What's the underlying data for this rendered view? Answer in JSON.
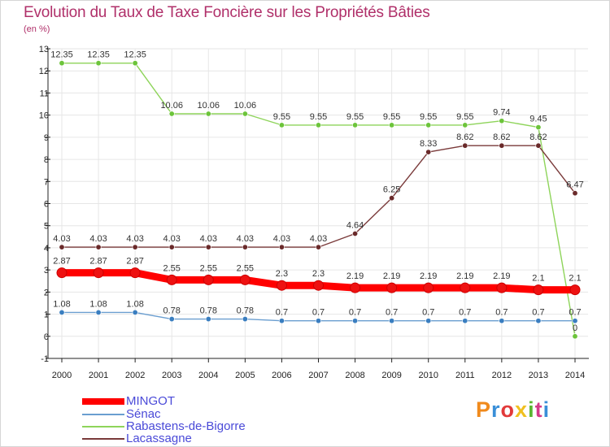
{
  "title": "Evolution du Taux de Taxe Foncière sur les Propriétés Bâties",
  "unit_label": "(en %)",
  "logo_text": "Proxiti",
  "logo_colors": [
    "#f08a1c",
    "#3a8fd8",
    "#e23a3a",
    "#f0c020",
    "#5ab532",
    "#d43a8a",
    "#3a8fd8"
  ],
  "chart_data": {
    "type": "line",
    "title": "Evolution du Taux de Taxe Foncière sur les Propriétés Bâties",
    "ylabel": "(en %)",
    "xlabel": "",
    "ylim": [
      -1,
      13
    ],
    "y_ticks": [
      "-1",
      "0",
      "1",
      "2",
      "3",
      "4",
      "5",
      "6",
      "7",
      "8",
      "9",
      "10",
      "11",
      "12",
      "13"
    ],
    "y_tick_values": [
      -1,
      0,
      1,
      2,
      3,
      4,
      5,
      6,
      7,
      8,
      9,
      10,
      11,
      12,
      13
    ],
    "grid": true,
    "legend_position": "bottom-left",
    "categories": [
      "2000",
      "2001",
      "2002",
      "2003",
      "2004",
      "2005",
      "2006",
      "2007",
      "2008",
      "2009",
      "2010",
      "2011",
      "2012",
      "2013",
      "2014"
    ],
    "series": [
      {
        "name": "Rabastens-de-Bigorre",
        "color": "#8ed45a",
        "marker": "#6cc43a",
        "values": [
          12.35,
          12.35,
          12.35,
          10.06,
          10.06,
          10.06,
          9.55,
          9.55,
          9.55,
          9.55,
          9.55,
          9.55,
          9.74,
          9.45,
          0
        ],
        "labels": [
          "12.35",
          "12.35",
          "12.35",
          "10.06",
          "10.06",
          "10.06",
          "9.55",
          "9.55",
          "9.55",
          "9.55",
          "9.55",
          "9.55",
          "9.74",
          "9.45",
          "0"
        ]
      },
      {
        "name": "Lacassagne",
        "color": "#7a3a3a",
        "marker": "#6a2a2a",
        "values": [
          4.03,
          4.03,
          4.03,
          4.03,
          4.03,
          4.03,
          4.03,
          4.03,
          4.64,
          6.25,
          8.33,
          8.62,
          8.62,
          8.62,
          6.47
        ],
        "labels": [
          "4.03",
          "4.03",
          "4.03",
          "4.03",
          "4.03",
          "4.03",
          "4.03",
          "4.03",
          "4.64",
          "6.25",
          "8.33",
          "8.62",
          "8.62",
          "8.62",
          "6.47"
        ]
      },
      {
        "name": "Sénac",
        "color": "#6a9ed0",
        "marker": "#3a7ec0",
        "values": [
          1.08,
          1.08,
          1.08,
          0.78,
          0.78,
          0.78,
          0.7,
          0.7,
          0.7,
          0.7,
          0.7,
          0.7,
          0.7,
          0.7,
          0.7
        ],
        "labels": [
          "1.08",
          "1.08",
          "1.08",
          "0.78",
          "0.78",
          "0.78",
          "0.7",
          "0.7",
          "0.7",
          "0.7",
          "0.7",
          "0.7",
          "0.7",
          "0.7",
          "0.7"
        ]
      },
      {
        "name": "MINGOT",
        "color": "#ff0000",
        "marker": "#ee1111",
        "values": [
          2.87,
          2.87,
          2.87,
          2.55,
          2.55,
          2.55,
          2.3,
          2.3,
          2.19,
          2.19,
          2.19,
          2.19,
          2.19,
          2.1,
          2.1
        ],
        "labels": [
          "2.87",
          "2.87",
          "2.87",
          "2.55",
          "2.55",
          "2.55",
          "2.3",
          "2.3",
          "2.19",
          "2.19",
          "2.19",
          "2.19",
          "2.19",
          "2.1",
          "2.1"
        ]
      }
    ],
    "legend": [
      {
        "name": "MINGOT",
        "color": "#ff0000"
      },
      {
        "name": "Sénac",
        "color": "#6a9ed0"
      },
      {
        "name": "Rabastens-de-Bigorre",
        "color": "#8ed45a"
      },
      {
        "name": "Lacassagne",
        "color": "#7a3a3a"
      }
    ]
  }
}
